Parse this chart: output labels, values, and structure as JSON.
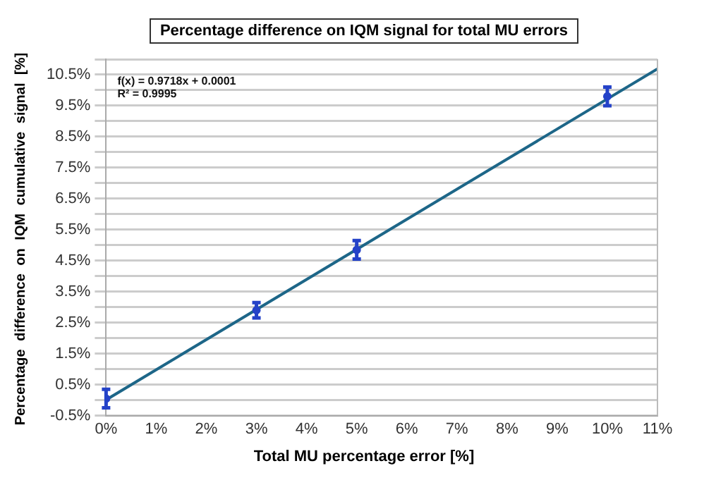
{
  "chart_data": {
    "type": "scatter",
    "title": "Percentage difference on IQM signal for total MU errors",
    "xlabel": "Total MU percentage error [%]",
    "ylabel": "Percentage difference on IQM cumulative signal [%]",
    "annotations": [
      "f(x) = 0.9718x + 0.0001",
      "R² = 0.9995"
    ],
    "xlim": [
      0,
      11
    ],
    "xticks": [
      {
        "value": 0,
        "label": "0%"
      },
      {
        "value": 1,
        "label": "1%"
      },
      {
        "value": 2,
        "label": "2%"
      },
      {
        "value": 3,
        "label": "3%"
      },
      {
        "value": 4,
        "label": "4%"
      },
      {
        "value": 5,
        "label": "5%"
      },
      {
        "value": 6,
        "label": "6%"
      },
      {
        "value": 7,
        "label": "7%"
      },
      {
        "value": 8,
        "label": "8%"
      },
      {
        "value": 9,
        "label": "9%"
      },
      {
        "value": 10,
        "label": "10%"
      },
      {
        "value": 11,
        "label": "11%"
      }
    ],
    "ylim": [
      -0.5,
      11
    ],
    "yticks": [
      {
        "value": -0.5,
        "label": "-0.5%"
      },
      {
        "value": 0,
        "label": null
      },
      {
        "value": 0.5,
        "label": "0.5%"
      },
      {
        "value": 1,
        "label": null
      },
      {
        "value": 1.5,
        "label": "1.5%"
      },
      {
        "value": 2,
        "label": null
      },
      {
        "value": 2.5,
        "label": "2.5%"
      },
      {
        "value": 3,
        "label": null
      },
      {
        "value": 3.5,
        "label": "3.5%"
      },
      {
        "value": 4,
        "label": null
      },
      {
        "value": 4.5,
        "label": "4.5%"
      },
      {
        "value": 5,
        "label": null
      },
      {
        "value": 5.5,
        "label": "5.5%"
      },
      {
        "value": 6,
        "label": null
      },
      {
        "value": 6.5,
        "label": "6.5%"
      },
      {
        "value": 7,
        "label": null
      },
      {
        "value": 7.5,
        "label": "7.5%"
      },
      {
        "value": 8,
        "label": null
      },
      {
        "value": 8.5,
        "label": "8.5%"
      },
      {
        "value": 9,
        "label": null
      },
      {
        "value": 9.5,
        "label": "9.5%"
      },
      {
        "value": 10,
        "label": null
      },
      {
        "value": 10.5,
        "label": "10.5%"
      },
      {
        "value": 11,
        "label": null
      }
    ],
    "grid": "y",
    "legend": false,
    "series": [
      {
        "color": "#2442c8",
        "marker": "circle",
        "x": [
          0,
          3,
          5,
          10
        ],
        "values": [
          0.05,
          2.9,
          4.85,
          9.8
        ],
        "errors": [
          0.3,
          0.25,
          0.3,
          0.3
        ]
      },
      {
        "type": "line",
        "marker": "none",
        "color": "#1d6688",
        "x": [
          0,
          11
        ],
        "values": [
          0.01,
          10.69
        ]
      }
    ]
  }
}
